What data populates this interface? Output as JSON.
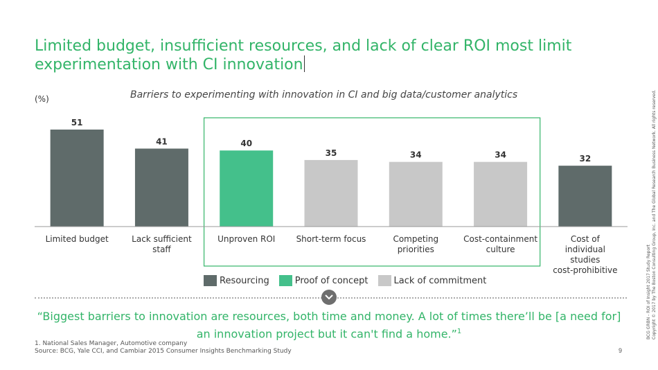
{
  "title": "Limited budget, insufficient resources, and lack of clear ROI most limit experimentation with CI innovation",
  "unit_label": "(%)",
  "chart_data": {
    "type": "bar",
    "title": "Barriers to experimenting with innovation in CI and big data/customer analytics",
    "categories": [
      "Limited budget",
      "Lack sufficient staff",
      "Unproven ROI",
      "Short-term focus",
      "Competing priorities",
      "Cost-containment culture",
      "Cost of individual studies cost-prohibitive"
    ],
    "values": [
      51,
      41,
      40,
      35,
      34,
      34,
      32
    ],
    "groups": [
      "Resourcing",
      "Resourcing",
      "Proof of concept",
      "Lack of commitment",
      "Lack of commitment",
      "Lack of commitment",
      "Resourcing"
    ],
    "ylim": [
      0,
      60
    ],
    "grid": false,
    "highlight_box": "Unproven ROI through Cost-containment culture",
    "colors": {
      "Resourcing": "#5f6b6a",
      "Proof of concept": "#44c08b",
      "Lack of commitment": "#c8c8c8",
      "highlight": "#32b468"
    }
  },
  "legend": [
    {
      "label": "Resourcing",
      "color": "#5f6b6a"
    },
    {
      "label": "Proof of concept",
      "color": "#44c08b"
    },
    {
      "label": "Lack of commitment",
      "color": "#c8c8c8"
    }
  ],
  "quote": {
    "text": "“Biggest barriers to innovation are resources, both time and money. A lot of times there’ll be [a need for] an innovation project but it can't find a home.”",
    "marker": "1"
  },
  "footnote": {
    "note": "1. National Sales Manager, Automotive company",
    "source": "Source: BCG, Yale CCI, and Cambiar 2015 Consumer Insights Benchmarking Study"
  },
  "page_number": "9",
  "sidebar": {
    "line1": "BCG GRBN - ROI of Insight 2017 Study Report",
    "line2": "Copyright © 2017 by The Boston Consulting Group, Inc. and The Global Research Business Network. All rights reserved."
  },
  "icons": {
    "divider": "chevron-down-icon"
  }
}
